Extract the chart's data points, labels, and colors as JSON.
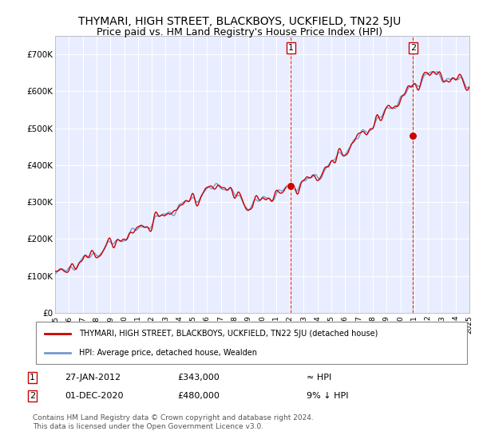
{
  "title": "THYMARI, HIGH STREET, BLACKBOYS, UCKFIELD, TN22 5JU",
  "subtitle": "Price paid vs. HM Land Registry's House Price Index (HPI)",
  "ylim": [
    0,
    750000
  ],
  "yticks": [
    0,
    100000,
    200000,
    300000,
    400000,
    500000,
    600000,
    700000
  ],
  "ytick_labels": [
    "£0",
    "£100K",
    "£200K",
    "£300K",
    "£400K",
    "£500K",
    "£600K",
    "£700K"
  ],
  "plot_bg_color": "#e8eeff",
  "grid_color": "#ffffff",
  "line1_color": "#cc0000",
  "line2_color": "#7799cc",
  "marker_color": "#cc0000",
  "title_fontsize": 10,
  "subtitle_fontsize": 9,
  "legend_label1": "THYMARI, HIGH STREET, BLACKBOYS, UCKFIELD, TN22 5JU (detached house)",
  "legend_label2": "HPI: Average price, detached house, Wealden",
  "annotation1_label": "1",
  "annotation1_date": "27-JAN-2012",
  "annotation1_price": "£343,000",
  "annotation1_hpi": "≈ HPI",
  "annotation2_label": "2",
  "annotation2_date": "01-DEC-2020",
  "annotation2_price": "£480,000",
  "annotation2_hpi": "9% ↓ HPI",
  "footer": "Contains HM Land Registry data © Crown copyright and database right 2024.\nThis data is licensed under the Open Government Licence v3.0.",
  "sale1_x": 2012.07,
  "sale1_y": 343000,
  "sale2_x": 2020.92,
  "sale2_y": 480000,
  "xmin": 1995,
  "xmax": 2025
}
